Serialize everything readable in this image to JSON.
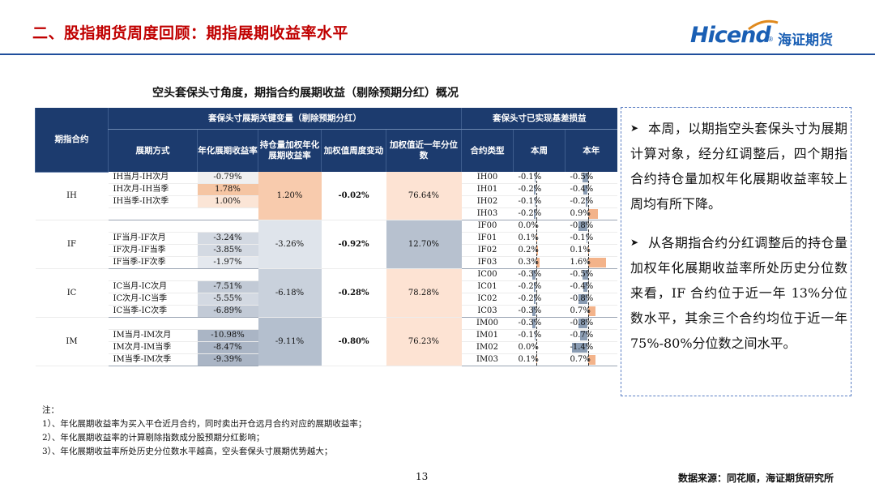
{
  "header": {
    "title": "二、股指期货周度回顾：期指展期收益率水平",
    "logo_en": "Hicend",
    "logo_reg": "®",
    "logo_cn": "海证期货"
  },
  "subtitle": "空头套保头寸角度，期指合约展期收益（剔除预期分红）概况",
  "table": {
    "group_header_1": "套保头寸展期关键变量（剔除预期分红）",
    "group_header_2": "套保头寸已实现基差损益",
    "col_contract": "期指合约",
    "col_method": "展期方式",
    "col_annual": "年化展期收益率",
    "col_oi_weighted": "持仓量加权年化展期收益率",
    "col_weekly_change": "加权值周度变动",
    "col_percentile": "加权值近一年分位数",
    "col_type": "合约类型",
    "col_week": "本周",
    "col_year": "本年",
    "groups": [
      {
        "code": "IH",
        "weighted": "1.20%",
        "change": "-0.02%",
        "percentile": "76.64%",
        "rows": [
          {
            "method": "IH当月-IH次月",
            "annual": "-0.79%",
            "type": "IH00",
            "week": "-0.1%",
            "year": "-0.5%",
            "week_v": -0.1,
            "year_v": -0.5
          },
          {
            "method": "IH次月-IH当季",
            "annual": "1.78%",
            "type": "IH01",
            "week": "-0.2%",
            "year": "-0.4%",
            "week_v": -0.2,
            "year_v": -0.4
          },
          {
            "method": "IH当季-IH次季",
            "annual": "1.00%",
            "type": "IH02",
            "week": "-0.1%",
            "year": "-0.2%",
            "week_v": -0.1,
            "year_v": -0.2
          },
          {
            "method": "",
            "annual": "",
            "type": "IH03",
            "week": "-0.2%",
            "year": "0.9%",
            "week_v": -0.2,
            "year_v": 0.9
          }
        ]
      },
      {
        "code": "IF",
        "weighted": "-3.26%",
        "change": "-0.92%",
        "percentile": "12.70%",
        "rows": [
          {
            "method": "",
            "annual": "",
            "type": "IF00",
            "week": "0.0%",
            "year": "-0.8%",
            "week_v": 0.0,
            "year_v": -0.8
          },
          {
            "method": "IF当月-IF次月",
            "annual": "-3.24%",
            "type": "IF01",
            "week": "0.1%",
            "year": "-0.1%",
            "week_v": 0.1,
            "year_v": -0.1
          },
          {
            "method": "IF次月-IF当季",
            "annual": "-3.85%",
            "type": "IF02",
            "week": "0.2%",
            "year": "0.1%",
            "week_v": 0.2,
            "year_v": 0.1
          },
          {
            "method": "IF当季-IF次季",
            "annual": "-1.97%",
            "type": "IF03",
            "week": "0.3%",
            "year": "1.6%",
            "week_v": 0.3,
            "year_v": 1.6
          }
        ]
      },
      {
        "code": "IC",
        "weighted": "-6.18%",
        "change": "-0.28%",
        "percentile": "78.28%",
        "rows": [
          {
            "method": "",
            "annual": "",
            "type": "IC00",
            "week": "-0.3%",
            "year": "-0.5%",
            "week_v": -0.3,
            "year_v": -0.5
          },
          {
            "method": "IC当月-IC次月",
            "annual": "-7.51%",
            "type": "IC01",
            "week": "-0.2%",
            "year": "-0.4%",
            "week_v": -0.2,
            "year_v": -0.4
          },
          {
            "method": "IC次月-IC当季",
            "annual": "-5.55%",
            "type": "IC02",
            "week": "-0.2%",
            "year": "-0.8%",
            "week_v": -0.2,
            "year_v": -0.8
          },
          {
            "method": "IC当季-IC次季",
            "annual": "-6.89%",
            "type": "IC03",
            "week": "-0.3%",
            "year": "0.7%",
            "week_v": -0.3,
            "year_v": 0.7
          }
        ]
      },
      {
        "code": "IM",
        "weighted": "-9.11%",
        "change": "-0.80%",
        "percentile": "76.23%",
        "rows": [
          {
            "method": "",
            "annual": "",
            "type": "IM00",
            "week": "-0.3%",
            "year": "-0.8%",
            "week_v": -0.3,
            "year_v": -0.8
          },
          {
            "method": "IM当月-IM次月",
            "annual": "-10.98%",
            "type": "IM01",
            "week": "-0.1%",
            "year": "-0.7%",
            "week_v": -0.1,
            "year_v": -0.7
          },
          {
            "method": "IM次月-IM当季",
            "annual": "-8.47%",
            "type": "IM02",
            "week": "0.0%",
            "year": "-1.4%",
            "week_v": 0.0,
            "year_v": -1.4
          },
          {
            "method": "IM当季-IM次季",
            "annual": "-9.39%",
            "type": "IM03",
            "week": "0.1%",
            "year": "0.7%",
            "week_v": 0.1,
            "year_v": 0.7
          }
        ]
      }
    ]
  },
  "commentary": {
    "p1": "本周，以期指空头套保头寸为展期计算对象，经分红调整后，四个期指合约持仓量加权年化展期收益率较上周均有所下降。",
    "p2": "从各期指合约分红调整后的持仓量加权年化展期收益率所处历史分位数来看，IF 合约位于近一年 13%分位数水平，其余三个合约均位于近一年 75%-80%分位数之间水平。"
  },
  "notes": {
    "title": "注：",
    "n1": "1）、年化展期收益率为买入平仓近月合约，同时卖出开仓远月合约对应的展期收益率；",
    "n2": "2）、年化展期收益率的计算剔除指数成分股预期分红影响；",
    "n3": "3）、年化展期收益率所处历史分位数水平越高，空头套保头寸展期优势越大；"
  },
  "page_number": "13",
  "source": "数据来源：同花顺，海证期货研究所",
  "colors": {
    "title_red": "#c00000",
    "header_navy": "#1c3b6e",
    "bar_negative": "#8a9cb3",
    "bar_positive": "#f3b38a",
    "logo_blue": "#1a5fb4"
  }
}
